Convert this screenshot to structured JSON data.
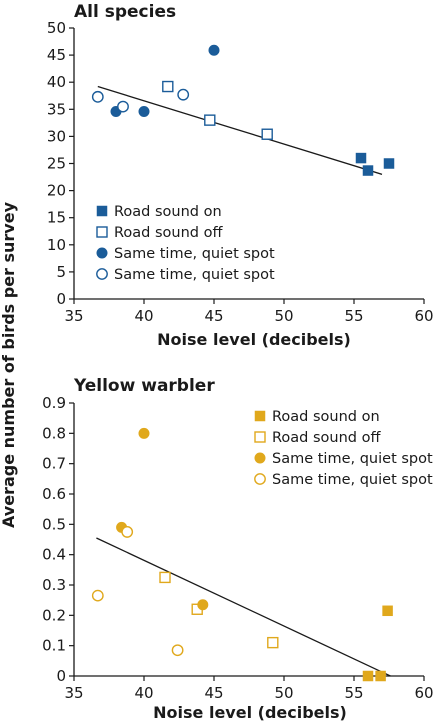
{
  "chart_data": {
    "shared_ylabel": "Average number of birds per survey",
    "panels": [
      {
        "type": "scatter",
        "title": "All species",
        "xlabel": "Noise level (decibels)",
        "xlim": [
          35,
          60
        ],
        "ylim": [
          0,
          50
        ],
        "xticks": [
          35,
          40,
          45,
          50,
          55,
          60
        ],
        "yticks": [
          0,
          5,
          10,
          15,
          20,
          25,
          30,
          35,
          40,
          45,
          50
        ],
        "color": "#1b5c99",
        "legend_position": "bottom-left",
        "trendline": {
          "x": [
            36.7,
            57.0
          ],
          "y": [
            39.2,
            23.0
          ]
        },
        "series": [
          {
            "name": "Road sound on",
            "marker": "filled-square",
            "points": [
              [
                55.5,
                26.0
              ],
              [
                56.0,
                23.7
              ],
              [
                57.5,
                25.0
              ]
            ]
          },
          {
            "name": "Road sound off",
            "marker": "open-square",
            "points": [
              [
                41.7,
                39.2
              ],
              [
                44.7,
                33.0
              ],
              [
                48.8,
                30.4
              ]
            ]
          },
          {
            "name": "Same time, quiet spot",
            "marker": "filled-circle",
            "points": [
              [
                38.0,
                34.6
              ],
              [
                40.0,
                34.6
              ],
              [
                45.0,
                45.9
              ]
            ]
          },
          {
            "name": "Same time, quiet spot",
            "marker": "open-circle",
            "points": [
              [
                36.7,
                37.3
              ],
              [
                38.5,
                35.5
              ],
              [
                42.8,
                37.7
              ]
            ]
          }
        ]
      },
      {
        "type": "scatter",
        "title": "Yellow warbler",
        "xlabel": "Noise level (decibels)",
        "xlim": [
          35,
          60
        ],
        "ylim": [
          0,
          0.9
        ],
        "xticks": [
          35,
          40,
          45,
          50,
          55,
          60
        ],
        "yticks": [
          0,
          0.1,
          0.2,
          0.3,
          0.4,
          0.5,
          0.6,
          0.7,
          0.8,
          0.9
        ],
        "color": "#e0a81c",
        "legend_position": "top-right",
        "trendline": {
          "x": [
            36.6,
            57.6
          ],
          "y": [
            0.455,
            0.0
          ]
        },
        "series": [
          {
            "name": "Road sound on",
            "marker": "filled-square",
            "points": [
              [
                56.0,
                0.0
              ],
              [
                56.9,
                0.0
              ],
              [
                57.4,
                0.215
              ]
            ]
          },
          {
            "name": "Road sound off",
            "marker": "open-square",
            "points": [
              [
                41.5,
                0.325
              ],
              [
                43.8,
                0.22
              ],
              [
                49.2,
                0.11
              ]
            ]
          },
          {
            "name": "Same time, quiet spot",
            "marker": "filled-circle",
            "points": [
              [
                38.4,
                0.49
              ],
              [
                40.0,
                0.8
              ],
              [
                44.2,
                0.235
              ]
            ]
          },
          {
            "name": "Same time, quiet spot",
            "marker": "open-circle",
            "points": [
              [
                36.7,
                0.265
              ],
              [
                38.8,
                0.475
              ],
              [
                42.4,
                0.085
              ]
            ]
          }
        ]
      }
    ]
  }
}
